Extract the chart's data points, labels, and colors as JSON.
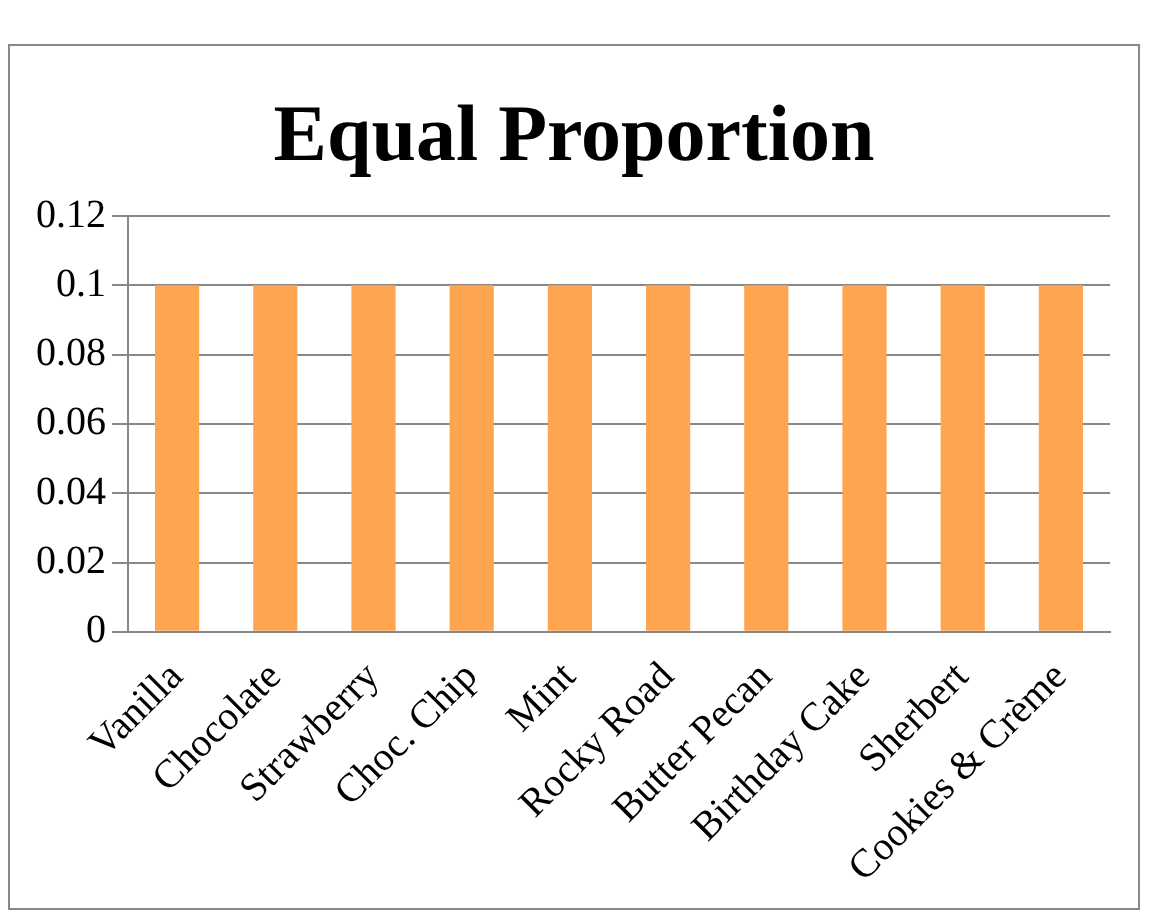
{
  "chart_data": {
    "type": "bar",
    "title": "Equal Proportion",
    "categories": [
      "Vanilla",
      "Chocolate",
      "Strawberry",
      "Choc. Chip",
      "Mint",
      "Rocky Road",
      "Butter Pecan",
      "Birthday Cake",
      "Sherbert",
      "Cookies & Crème"
    ],
    "values": [
      0.1,
      0.1,
      0.1,
      0.1,
      0.1,
      0.1,
      0.1,
      0.1,
      0.1,
      0.1
    ],
    "color": "#ffa54f",
    "ylim": [
      0,
      0.12
    ],
    "yticks": [
      0,
      0.02,
      0.04,
      0.06,
      0.08,
      0.1,
      0.12
    ],
    "grid": "y",
    "legend": false
  }
}
